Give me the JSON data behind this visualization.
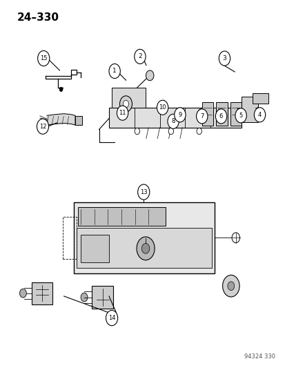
{
  "page_number": "24–330",
  "watermark": "94324 330",
  "background_color": "#ffffff",
  "line_color": "#000000",
  "figsize": [
    4.14,
    5.33
  ],
  "dpi": 100
}
